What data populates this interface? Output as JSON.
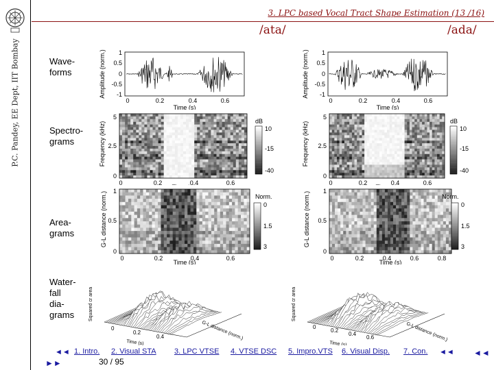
{
  "header": {
    "title": "3. LPC based Vocal Tract Shape Estimation (13 /16)",
    "author": "P.C. Pandey, EE Dept, IIT Bombay",
    "columns": [
      "/ata/",
      "/ada/"
    ]
  },
  "rows": {
    "waveforms": "Wave-\nforms",
    "spectrograms": "Spectro-\ngrams",
    "areagrams": "Area-\ngrams",
    "waterfall": "Water-\nfall\ndia-\ngrams"
  },
  "axes": {
    "wave_ylabel": "Amplitude (norm.)",
    "spec_ylabel": "Frequency (kHz)",
    "area_ylabel": "G-L distance (norm.)",
    "xlabel": "Time (s)",
    "wf_ylabel": "Squared cr area",
    "wf_xlabel": "Time (s)",
    "wf_zlabel": "G-L distance (norm.)",
    "db_label": "dB",
    "norm_label": "Norm."
  },
  "chart_data": [
    {
      "type": "line",
      "title": "/ata/ waveform",
      "ylabel": "Amplitude (norm.)",
      "xlabel": "Time (s)",
      "xlim": [
        0,
        0.7
      ],
      "ylim": [
        -1,
        1
      ],
      "xticks": [
        "0",
        "0.2",
        "0.4",
        "0.6"
      ],
      "yticks": [
        "1",
        "0.5",
        "0",
        "-0.5",
        "-1"
      ]
    },
    {
      "type": "line",
      "title": "/ada/ waveform",
      "ylabel": "Amplitude (norm.)",
      "xlabel": "Time (s)",
      "xlim": [
        0,
        0.7
      ],
      "ylim": [
        -1,
        1
      ],
      "xticks": [
        "0",
        "0.2",
        "0.4",
        "0.6"
      ],
      "yticks": [
        "1",
        "0.5",
        "0",
        "-0.5",
        "-1"
      ]
    },
    {
      "type": "heatmap",
      "title": "/ata/ spectrogram",
      "ylabel": "Frequency (kHz)",
      "xlabel": "Time (s)",
      "xticks": [
        "0",
        "0.2",
        "0.4",
        "0.6"
      ],
      "yticks": [
        "5",
        "2.5",
        "0"
      ],
      "colorbar": [
        "10",
        "-15",
        "-40"
      ],
      "colorbar_label": "dB"
    },
    {
      "type": "heatmap",
      "title": "/ada/ spectrogram",
      "ylabel": "Frequency (kHz)",
      "xlabel": "Time (s)",
      "xticks": [
        "0",
        "0.2",
        "0.4",
        "0.6"
      ],
      "yticks": [
        "5",
        "2.5",
        "0"
      ],
      "colorbar": [
        "10",
        "-15",
        "-40"
      ],
      "colorbar_label": "dB"
    },
    {
      "type": "heatmap",
      "title": "/ata/ areagram",
      "ylabel": "G-L distance (norm.)",
      "xlabel": "Time (s)",
      "xticks": [
        "0",
        "0.2",
        "0.4",
        "0.6"
      ],
      "yticks": [
        "1",
        "0.5",
        "0"
      ],
      "colorbar": [
        "0",
        "1.5",
        "3"
      ],
      "colorbar_label": "Norm."
    },
    {
      "type": "heatmap",
      "title": "/ada/ areagram",
      "ylabel": "G-L distance (norm.)",
      "xlabel": "Time (s)",
      "xticks": [
        "0",
        "0.2",
        "0.4",
        "0.6",
        "0.8"
      ],
      "yticks": [
        "1",
        "0.5",
        "0"
      ],
      "colorbar": [
        "0",
        "1.5",
        "3"
      ],
      "colorbar_label": "Norm."
    },
    {
      "type": "area",
      "title": "/ata/ waterfall",
      "xlabel": "Time (s)",
      "ylabel": "Squared cr area",
      "zlabel": "G-L distance (norm.)",
      "xticks": [
        "0",
        "0.2",
        "0.4"
      ]
    },
    {
      "type": "area",
      "title": "/ada/ waterfall",
      "xlabel": "Time (s)",
      "ylabel": "Squared cr area",
      "zlabel": "G-L distance (norm.)",
      "xticks": [
        "0",
        "0.2",
        "0.4",
        "0.6"
      ]
    }
  ],
  "footer": {
    "links": [
      "1. Intro.",
      "2. Visual STA",
      "3. LPC VTSE",
      "4. VTSE DSC",
      "5. Impro.VTS",
      "6. Visual Disp.",
      "7. Con."
    ],
    "page": "30 / 95",
    "nav_left_top": "◄◄",
    "nav_left_bottom": "►►",
    "nav_mid": "◄◄",
    "nav_right": "◄◄"
  }
}
